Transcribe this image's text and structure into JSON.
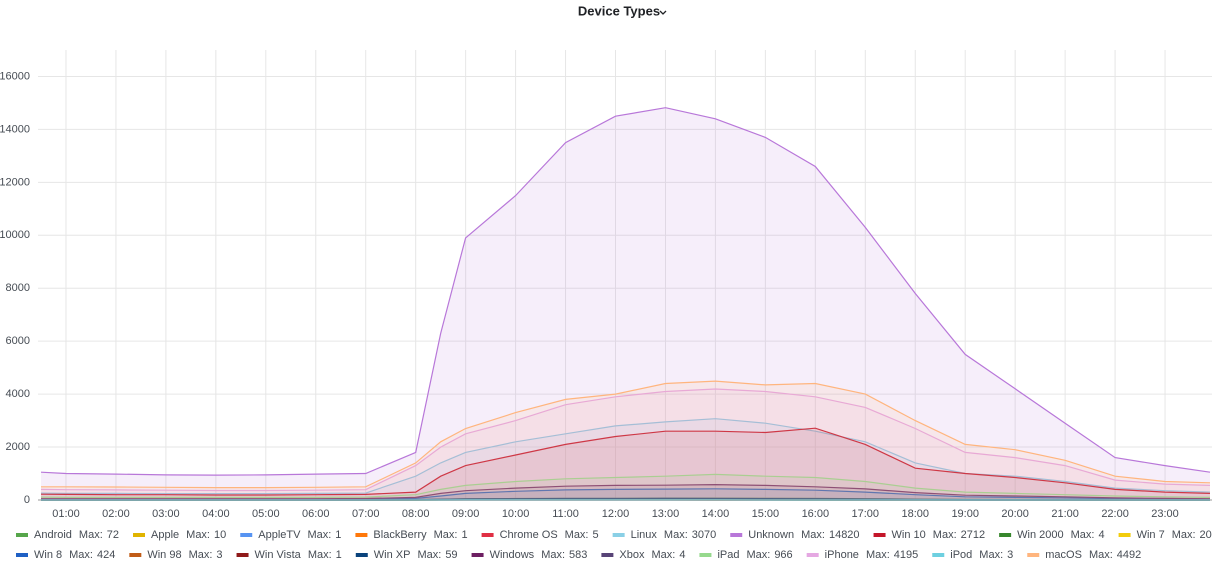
{
  "chart_data": {
    "type": "area",
    "title": "Device Types",
    "legend_stat_label": "Max:",
    "x": [
      0.5,
      1,
      2,
      3,
      4,
      5,
      6,
      7,
      8,
      8.5,
      9,
      10,
      11,
      12,
      13,
      14,
      15,
      16,
      17,
      18,
      19,
      20,
      21,
      22,
      23,
      23.9
    ],
    "xlim": [
      0.44,
      23.94
    ],
    "xticks": [
      {
        "value": 1,
        "label": "01:00"
      },
      {
        "value": 2,
        "label": "02:00"
      },
      {
        "value": 3,
        "label": "03:00"
      },
      {
        "value": 4,
        "label": "04:00"
      },
      {
        "value": 5,
        "label": "05:00"
      },
      {
        "value": 6,
        "label": "06:00"
      },
      {
        "value": 7,
        "label": "07:00"
      },
      {
        "value": 8,
        "label": "08:00"
      },
      {
        "value": 9,
        "label": "09:00"
      },
      {
        "value": 10,
        "label": "10:00"
      },
      {
        "value": 11,
        "label": "11:00"
      },
      {
        "value": 12,
        "label": "12:00"
      },
      {
        "value": 13,
        "label": "13:00"
      },
      {
        "value": 14,
        "label": "14:00"
      },
      {
        "value": 15,
        "label": "15:00"
      },
      {
        "value": 16,
        "label": "16:00"
      },
      {
        "value": 17,
        "label": "17:00"
      },
      {
        "value": 18,
        "label": "18:00"
      },
      {
        "value": 19,
        "label": "19:00"
      },
      {
        "value": 20,
        "label": "20:00"
      },
      {
        "value": 21,
        "label": "21:00"
      },
      {
        "value": 22,
        "label": "22:00"
      },
      {
        "value": 23,
        "label": "23:00"
      }
    ],
    "ylim": [
      0,
      17000
    ],
    "yticks": [
      0,
      2000,
      4000,
      6000,
      8000,
      10000,
      12000,
      14000,
      16000
    ],
    "grid": true,
    "legend": "bottom",
    "series": [
      {
        "name": "Android",
        "max": 72,
        "color": "#56a64b",
        "values": [
          5,
          5,
          4,
          4,
          4,
          4,
          5,
          6,
          15,
          30,
          45,
          55,
          60,
          65,
          70,
          72,
          68,
          60,
          50,
          35,
          25,
          20,
          15,
          10,
          8,
          6
        ]
      },
      {
        "name": "Apple",
        "max": 10,
        "color": "#e0b400",
        "values": [
          0,
          0,
          0,
          0,
          0,
          0,
          0,
          0,
          1,
          2,
          4,
          6,
          8,
          10,
          9,
          8,
          7,
          6,
          5,
          3,
          2,
          1,
          1,
          0,
          0,
          0
        ]
      },
      {
        "name": "AppleTV",
        "max": 1,
        "color": "#5794f2",
        "values": [
          0,
          0,
          0,
          0,
          0,
          0,
          0,
          0,
          0,
          0,
          0,
          0,
          1,
          1,
          1,
          0,
          0,
          0,
          0,
          0,
          0,
          0,
          0,
          0,
          0,
          0
        ]
      },
      {
        "name": "BlackBerry",
        "max": 1,
        "color": "#ff780a",
        "values": [
          0,
          0,
          0,
          0,
          0,
          0,
          0,
          0,
          0,
          0,
          0,
          1,
          1,
          0,
          0,
          0,
          0,
          0,
          0,
          0,
          0,
          0,
          0,
          0,
          0,
          0
        ]
      },
      {
        "name": "Chrome OS",
        "max": 5,
        "color": "#e02f44",
        "values": [
          0,
          0,
          0,
          0,
          0,
          0,
          0,
          0,
          1,
          2,
          3,
          4,
          5,
          5,
          4,
          4,
          3,
          2,
          1,
          1,
          0,
          0,
          0,
          0,
          0,
          0
        ]
      },
      {
        "name": "Linux",
        "max": 3070,
        "color": "#8ad0e6",
        "values": [
          260,
          250,
          250,
          240,
          240,
          240,
          250,
          260,
          900,
          1400,
          1800,
          2200,
          2500,
          2800,
          2950,
          3070,
          2900,
          2600,
          2200,
          1400,
          1000,
          900,
          700,
          450,
          350,
          300
        ]
      },
      {
        "name": "Unknown",
        "max": 14820,
        "color": "#b877d9",
        "values": [
          1050,
          1000,
          980,
          950,
          940,
          950,
          980,
          1000,
          1800,
          6300,
          9900,
          11500,
          13500,
          14500,
          14820,
          14400,
          13700,
          12600,
          10300,
          7800,
          5500,
          4200,
          2900,
          1600,
          1300,
          1050
        ]
      },
      {
        "name": "Win 10",
        "max": 2712,
        "color": "#c4162a",
        "values": [
          220,
          210,
          200,
          200,
          190,
          190,
          200,
          210,
          300,
          900,
          1300,
          1700,
          2100,
          2400,
          2600,
          2600,
          2550,
          2712,
          2100,
          1200,
          1000,
          850,
          650,
          400,
          300,
          250
        ]
      },
      {
        "name": "Win 2000",
        "max": 4,
        "color": "#37872d",
        "values": [
          0,
          0,
          0,
          0,
          0,
          0,
          0,
          0,
          1,
          2,
          3,
          4,
          4,
          3,
          3,
          2,
          2,
          1,
          1,
          0,
          0,
          0,
          0,
          0,
          0,
          0
        ]
      },
      {
        "name": "Win 7",
        "max": 20,
        "color": "#f2cc0c",
        "values": [
          2,
          2,
          2,
          2,
          2,
          2,
          2,
          2,
          5,
          10,
          14,
          17,
          19,
          20,
          19,
          18,
          16,
          14,
          10,
          6,
          4,
          3,
          3,
          2,
          2,
          2
        ]
      },
      {
        "name": "Win 8",
        "max": 424,
        "color": "#1f60c4",
        "values": [
          30,
          30,
          30,
          30,
          30,
          30,
          30,
          35,
          60,
          150,
          250,
          330,
          380,
          400,
          410,
          424,
          400,
          370,
          300,
          200,
          120,
          100,
          80,
          50,
          40,
          30
        ]
      },
      {
        "name": "Win 98",
        "max": 3,
        "color": "#c15c17",
        "values": [
          0,
          0,
          0,
          0,
          0,
          0,
          0,
          0,
          0,
          1,
          2,
          3,
          3,
          2,
          2,
          1,
          1,
          1,
          0,
          0,
          0,
          0,
          0,
          0,
          0,
          0
        ]
      },
      {
        "name": "Win Vista",
        "max": 1,
        "color": "#8f1a1a",
        "values": [
          0,
          0,
          0,
          0,
          0,
          0,
          0,
          0,
          0,
          0,
          0,
          0,
          0,
          1,
          0,
          0,
          0,
          0,
          0,
          0,
          0,
          0,
          0,
          0,
          0,
          0
        ]
      },
      {
        "name": "Win XP",
        "max": 59,
        "color": "#0a437c",
        "values": [
          5,
          5,
          5,
          5,
          5,
          5,
          5,
          6,
          15,
          30,
          42,
          50,
          55,
          58,
          59,
          57,
          54,
          48,
          38,
          25,
          15,
          12,
          10,
          8,
          6,
          5
        ]
      },
      {
        "name": "Windows",
        "max": 583,
        "color": "#6d1f62",
        "values": [
          50,
          50,
          50,
          50,
          50,
          50,
          50,
          55,
          100,
          250,
          350,
          450,
          520,
          550,
          560,
          583,
          550,
          500,
          420,
          280,
          180,
          150,
          120,
          80,
          60,
          50
        ]
      },
      {
        "name": "Xbox",
        "max": 4,
        "color": "#584477",
        "values": [
          1,
          1,
          1,
          1,
          1,
          1,
          1,
          1,
          2,
          3,
          3,
          4,
          4,
          4,
          3,
          3,
          3,
          2,
          2,
          2,
          1,
          1,
          1,
          1,
          1,
          1
        ]
      },
      {
        "name": "iPad",
        "max": 966,
        "color": "#96d98d",
        "values": [
          110,
          100,
          100,
          100,
          100,
          100,
          100,
          110,
          200,
          400,
          550,
          700,
          800,
          850,
          900,
          966,
          900,
          850,
          700,
          450,
          300,
          250,
          200,
          150,
          120,
          100
        ]
      },
      {
        "name": "iPhone",
        "max": 4195,
        "color": "#e5a8e2",
        "values": [
          400,
          390,
          380,
          370,
          360,
          360,
          370,
          390,
          1300,
          2000,
          2500,
          3000,
          3600,
          3900,
          4100,
          4195,
          4100,
          3900,
          3500,
          2700,
          1800,
          1600,
          1300,
          750,
          600,
          550
        ]
      },
      {
        "name": "iPod",
        "max": 3,
        "color": "#6ed0e0",
        "values": [
          0,
          0,
          0,
          0,
          0,
          0,
          0,
          0,
          0,
          1,
          2,
          3,
          3,
          2,
          2,
          2,
          1,
          1,
          0,
          0,
          0,
          0,
          0,
          0,
          0,
          0
        ]
      },
      {
        "name": "macOS",
        "max": 4492,
        "color": "#ffb57e",
        "values": [
          500,
          500,
          490,
          480,
          470,
          470,
          480,
          500,
          1400,
          2200,
          2700,
          3300,
          3800,
          4000,
          4400,
          4492,
          4350,
          4400,
          4000,
          3000,
          2100,
          1900,
          1500,
          900,
          700,
          650
        ]
      }
    ]
  }
}
